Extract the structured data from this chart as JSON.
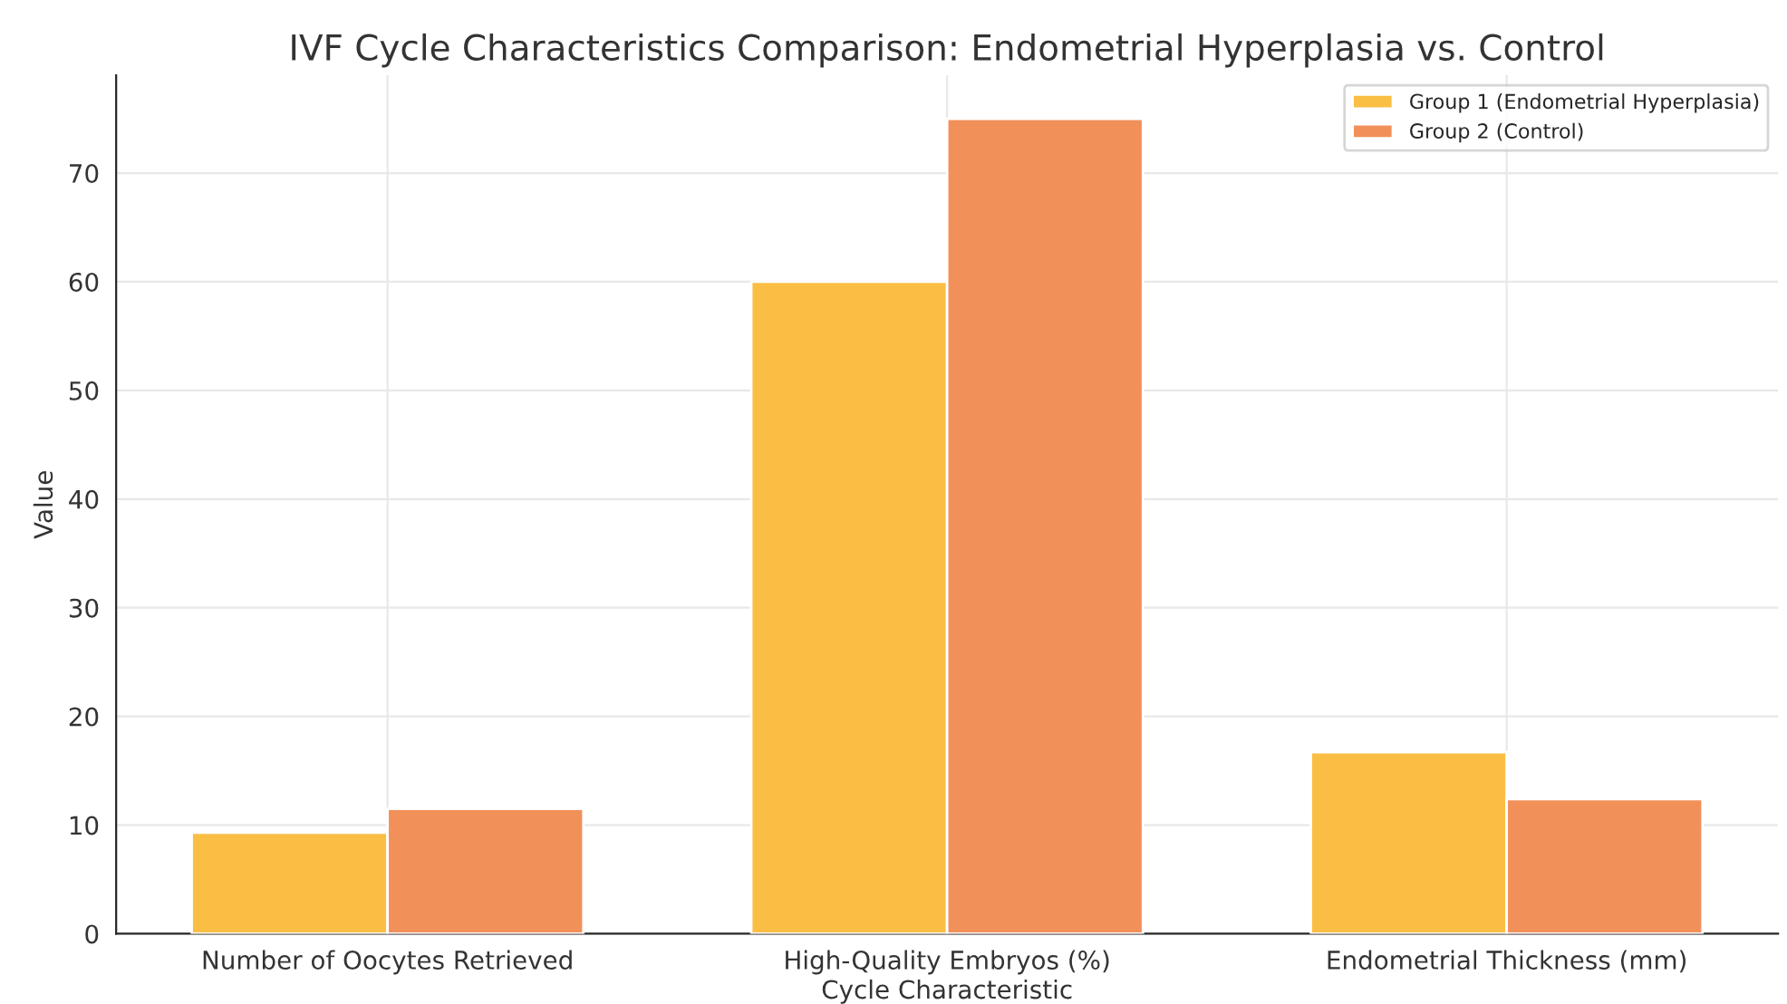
{
  "chart_data": {
    "type": "bar",
    "title": "IVF Cycle Characteristics Comparison: Endometrial Hyperplasia vs. Control",
    "xlabel": "Cycle Characteristic",
    "ylabel": "Value",
    "categories": [
      "Number of Oocytes Retrieved",
      "High-Quality Embryos (%)",
      "Endometrial Thickness (mm)"
    ],
    "series": [
      {
        "name": "Group 1 (Endometrial Hyperplasia)",
        "color": "#fbbe45",
        "values": [
          9.3,
          60,
          16.7
        ]
      },
      {
        "name": "Group 2 (Control)",
        "color": "#f2905a",
        "values": [
          11.5,
          75,
          12.4
        ]
      }
    ],
    "ylim": [
      0,
      79
    ],
    "yticks": [
      0,
      10,
      20,
      30,
      40,
      50,
      60,
      70
    ],
    "grid": true,
    "legend": "top right"
  }
}
